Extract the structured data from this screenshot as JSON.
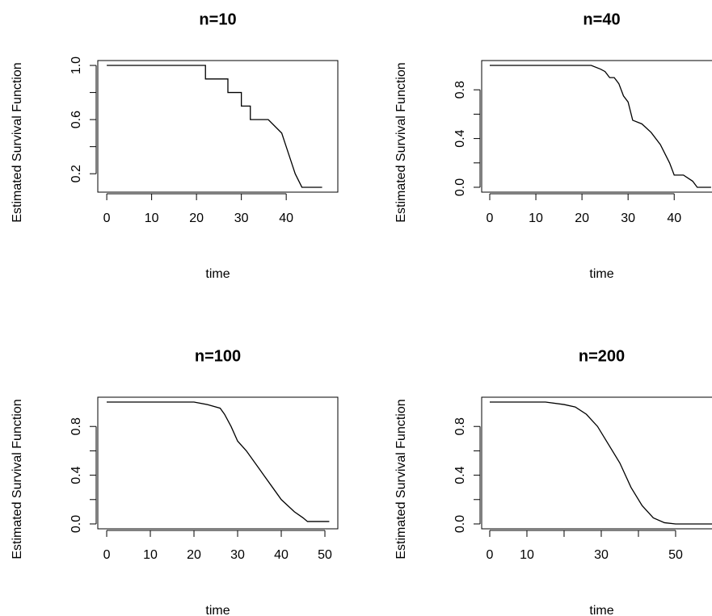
{
  "chart_data": [
    {
      "type": "line",
      "title": "n=10",
      "xlabel": "time",
      "ylabel": "Estimated Survival Function",
      "color": "#000000",
      "x": [
        0,
        22,
        22,
        27,
        27,
        30,
        30,
        32,
        32,
        36,
        39,
        40,
        41,
        42,
        43.5,
        48
      ],
      "values": [
        1.0,
        1.0,
        0.9,
        0.9,
        0.8,
        0.8,
        0.7,
        0.7,
        0.6,
        0.6,
        0.5,
        0.4,
        0.3,
        0.2,
        0.1,
        0.1
      ],
      "xlim": [
        -2.0,
        51.5
      ],
      "ylim": [
        0.064,
        1.036
      ],
      "xticks": [
        0,
        10,
        20,
        30,
        40
      ],
      "yticks": [
        0.2,
        {
          "value": 0.4,
          "label": null
        },
        0.6,
        {
          "value": 0.8,
          "label": null
        },
        {
          "value": 1.0,
          "label": "1.0"
        }
      ]
    },
    {
      "type": "line",
      "title": "n=40",
      "xlabel": "time",
      "ylabel": "Estimated Survival Function",
      "color": "#000000",
      "x": [
        0,
        22,
        24,
        25,
        26,
        27,
        28,
        29,
        30,
        31,
        33,
        35,
        37,
        39,
        40,
        42,
        44,
        45,
        48
      ],
      "values": [
        1.0,
        1.0,
        0.97,
        0.95,
        0.9,
        0.9,
        0.85,
        0.75,
        0.7,
        0.55,
        0.52,
        0.45,
        0.35,
        0.2,
        0.1,
        0.1,
        0.05,
        0.0,
        0.0
      ],
      "xlim": [
        -1.75,
        50.3
      ],
      "ylim": [
        -0.04,
        1.04
      ],
      "xticks": [
        0,
        10,
        20,
        30,
        40
      ],
      "yticks": [
        {
          "value": 0,
          "label": "0.0"
        },
        {
          "value": 0.2,
          "label": null
        },
        0.4,
        {
          "value": 0.6,
          "label": null
        },
        0.8
      ]
    },
    {
      "type": "line",
      "title": "n=100",
      "xlabel": "time",
      "ylabel": "Estimated Survival Function",
      "color": "#000000",
      "x": [
        0,
        20,
        23,
        26,
        27,
        28.5,
        30,
        32,
        35,
        36,
        38,
        40,
        43,
        45,
        46,
        51
      ],
      "values": [
        1.0,
        1.0,
        0.98,
        0.95,
        0.9,
        0.8,
        0.68,
        0.6,
        0.45,
        0.4,
        0.3,
        0.2,
        0.1,
        0.05,
        0.02,
        0.02
      ],
      "xlim": [
        -2.04,
        52.96
      ],
      "ylim": [
        -0.04,
        1.04
      ],
      "xticks": [
        0,
        10,
        20,
        30,
        40,
        50
      ],
      "yticks": [
        {
          "value": 0,
          "label": "0.0"
        },
        {
          "value": 0.2,
          "label": null
        },
        0.4,
        {
          "value": 0.6,
          "label": null
        },
        0.8
      ]
    },
    {
      "type": "line",
      "title": "n=200",
      "xlabel": "time",
      "ylabel": "Estimated Survival Function",
      "color": "#000000",
      "x": [
        0,
        15,
        20,
        23,
        26,
        29,
        31,
        35,
        38,
        41,
        44,
        47,
        50,
        62
      ],
      "values": [
        1.0,
        1.0,
        0.98,
        0.96,
        0.9,
        0.8,
        0.7,
        0.5,
        0.3,
        0.15,
        0.05,
        0.01,
        0.0,
        0.0
      ],
      "xlim": [
        -2.17,
        62.4
      ],
      "ylim": [
        -0.04,
        1.04
      ],
      "xticks": [
        0,
        10,
        {
          "value": 20,
          "label": null
        },
        30,
        {
          "value": 40,
          "label": null
        },
        50
      ],
      "yticks": [
        {
          "value": 0,
          "label": "0.0"
        },
        {
          "value": 0.2,
          "label": null
        },
        0.4,
        {
          "value": 0.6,
          "label": null
        },
        0.8
      ]
    }
  ]
}
